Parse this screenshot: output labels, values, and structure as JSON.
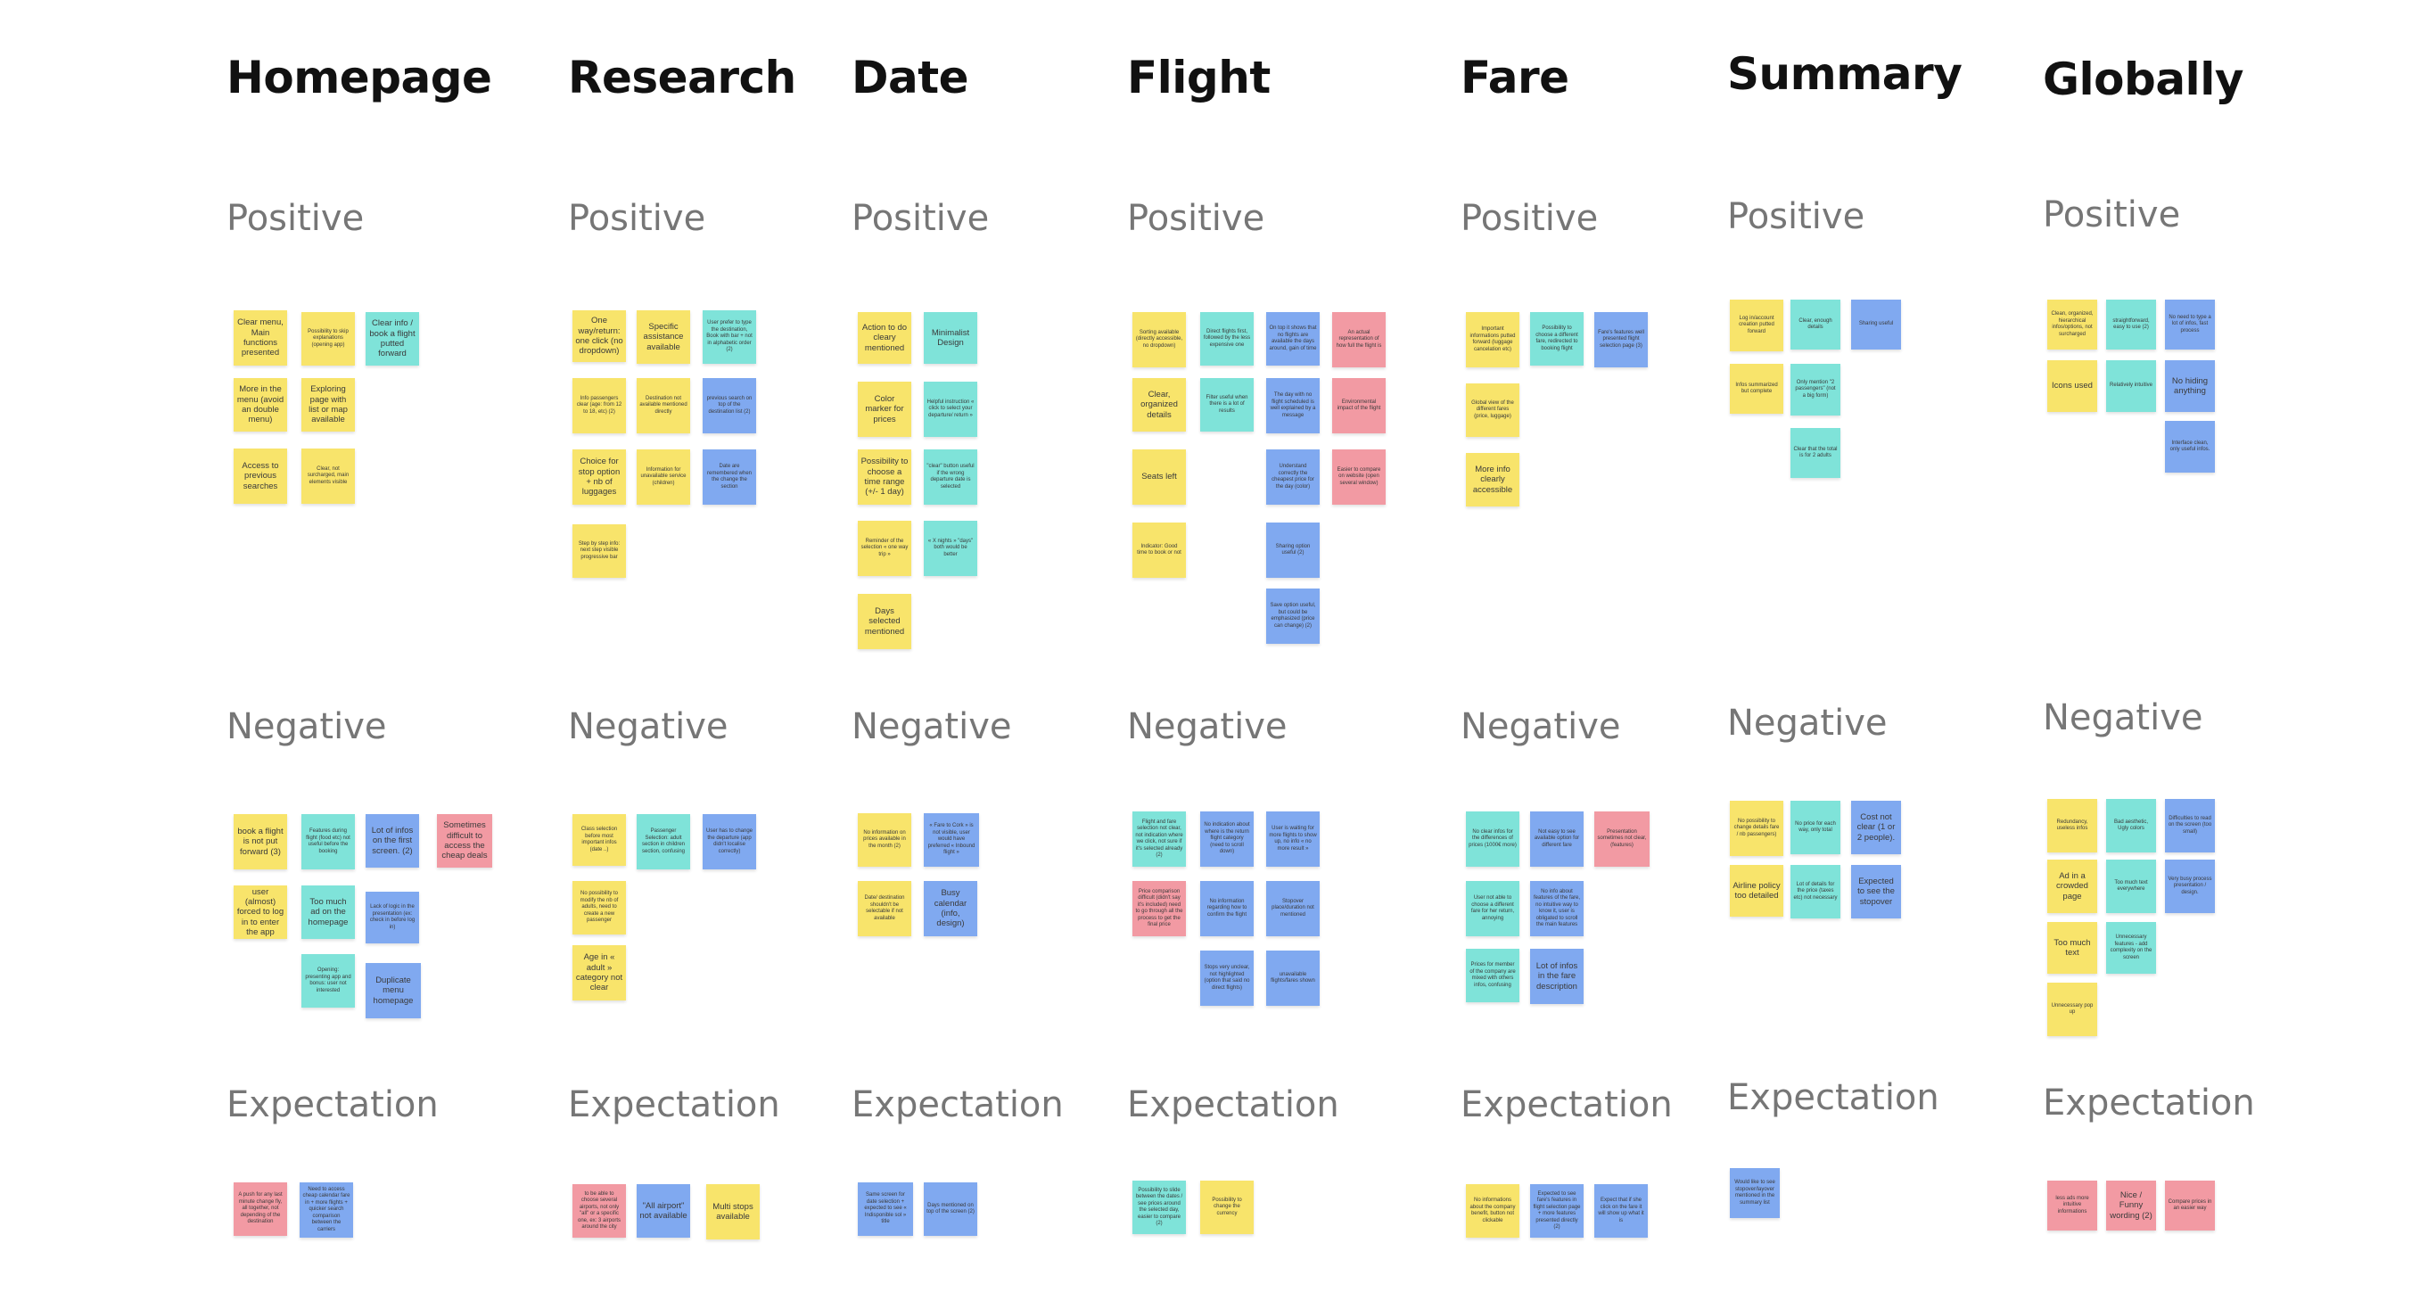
{
  "colors": {
    "yellow": "#F8E46B",
    "teal": "#7FE3D9",
    "blue": "#80A9F0",
    "pink": "#F29AA3"
  },
  "sections": [
    "Positive",
    "Negative",
    "Expectation"
  ],
  "columns": [
    {
      "title": "Homepage",
      "positive": [
        {
          "text": "Clear menu, Main functions presented",
          "color": "yellow",
          "big": true
        },
        {
          "text": "Possibility to skip explanations (opening app)",
          "color": "yellow"
        },
        {
          "text": "Clear info / book a flight putted forward",
          "color": "teal",
          "big": true
        },
        {
          "text": "More in the menu (avoid an double menu)",
          "color": "yellow",
          "big": true
        },
        {
          "text": "Exploring page with list or map available",
          "color": "yellow",
          "big": true
        },
        {
          "text": "Access to previous searches",
          "color": "yellow",
          "big": true
        },
        {
          "text": "Clear, not surcharged, main elements visible",
          "color": "yellow"
        }
      ],
      "negative": [
        {
          "text": "book a flight is not put forward (3)",
          "color": "yellow",
          "big": true
        },
        {
          "text": "Features during flight (food etc) not useful before the booking",
          "color": "teal"
        },
        {
          "text": "Lot of infos on the first screen. (2)",
          "color": "blue",
          "big": true
        },
        {
          "text": "Sometimes difficult to access the cheap deals",
          "color": "pink",
          "big": true
        },
        {
          "text": "user (almost) forced to log in to enter the app",
          "color": "yellow",
          "big": true
        },
        {
          "text": "Too much ad on the homepage",
          "color": "teal",
          "big": true
        },
        {
          "text": "Lack of logic in the presentation (ex: check in before log in)",
          "color": "blue"
        },
        {
          "text": "Opening: presenting app and bonus: user not interested",
          "color": "teal"
        },
        {
          "text": "Duplicate menu homepage",
          "color": "blue",
          "big": true
        }
      ],
      "expectation": [
        {
          "text": "A push for any last minute change fly, all together, not depending of the destination",
          "color": "pink"
        },
        {
          "text": "Need to access cheap calendar fare in + more flights + quicker search comparison between the carriers",
          "color": "blue"
        }
      ]
    },
    {
      "title": "Research",
      "positive": [
        {
          "text": "One way/return: one click (no dropdown)",
          "color": "yellow",
          "big": true
        },
        {
          "text": "Specific assistance available",
          "color": "yellow",
          "big": true
        },
        {
          "text": "User prefer to type the destination, Book with bar + not in alphabetic order (2)",
          "color": "teal"
        },
        {
          "text": "Info passengers clear (age: from 12 to 18, etc) (2)",
          "color": "yellow"
        },
        {
          "text": "Destination not available mentioned directly",
          "color": "yellow"
        },
        {
          "text": "previous search on top of the destination list (2)",
          "color": "blue"
        },
        {
          "text": "Choice for stop option + nb of luggages",
          "color": "yellow",
          "big": true
        },
        {
          "text": "Information for unavailable service (children)",
          "color": "yellow"
        },
        {
          "text": "Date are remembered when the change the section",
          "color": "blue"
        },
        {
          "text": "Step by step info: next step visible progressive bar",
          "color": "yellow"
        }
      ],
      "negative": [
        {
          "text": "Class selection before most important infos (date ..)",
          "color": "yellow"
        },
        {
          "text": "Passenger Selection: adult section in children section, confusing",
          "color": "teal"
        },
        {
          "text": "User has to change the departure (app didn't localise correctly)",
          "color": "blue"
        },
        {
          "text": "No possibility to modify the nb of adults, need to create a new passenger",
          "color": "yellow"
        },
        {
          "text": "Age in « adult » category not clear",
          "color": "yellow",
          "big": true
        }
      ],
      "expectation": [
        {
          "text": "to be able to choose several airports, not only \"all\" or a specific one, ex: 3 airports around the city",
          "color": "pink"
        },
        {
          "text": "\"All airport\" not available",
          "color": "blue",
          "big": true
        },
        {
          "text": "Multi stops available",
          "color": "yellow",
          "big": true
        }
      ]
    },
    {
      "title": "Date",
      "positive": [
        {
          "text": "Action to do cleary mentioned",
          "color": "yellow",
          "big": true
        },
        {
          "text": "Minimalist Design",
          "color": "teal",
          "big": true
        },
        {
          "text": "Color marker for prices",
          "color": "yellow",
          "big": true
        },
        {
          "text": "Helpful instruction « click to select your departure/ return »",
          "color": "teal"
        },
        {
          "text": "Possibility to choose a time range (+/- 1 day)",
          "color": "yellow",
          "big": true
        },
        {
          "text": "\"clear\" button useful if the wrong departure date is selected",
          "color": "teal"
        },
        {
          "text": "Reminder of the selection « one way trip »",
          "color": "yellow"
        },
        {
          "text": "« X nights » \"days\" both would be better",
          "color": "teal"
        },
        {
          "text": "Days selected mentioned",
          "color": "yellow",
          "big": true
        }
      ],
      "negative": [
        {
          "text": "No information on prices available in the month (2)",
          "color": "yellow"
        },
        {
          "text": "« Fare to Cork » is not visible, user would have preferred « Inbound flight »",
          "color": "blue"
        },
        {
          "text": "Date/ destination shouldn't be selectable if not available",
          "color": "yellow"
        },
        {
          "text": "Busy calendar (info, design)",
          "color": "blue",
          "big": true
        }
      ],
      "expectation": [
        {
          "text": "Same screen for date selection + expected to see « Indisponible sol » title",
          "color": "blue"
        },
        {
          "text": "Days mentioned on top of the screen (2)",
          "color": "blue"
        }
      ]
    },
    {
      "title": "Flight",
      "positive": [
        {
          "text": "Sorting available (directly accessible, no dropdown)",
          "color": "yellow"
        },
        {
          "text": "Direct flights first, followed by the less expensive one",
          "color": "teal"
        },
        {
          "text": "On top it shows that no flights are available the days around, gain of time",
          "color": "blue"
        },
        {
          "text": "An actual representation of how full the flight is",
          "color": "pink"
        },
        {
          "text": "Clear, organized details",
          "color": "yellow",
          "big": true
        },
        {
          "text": "Filter useful when there is a lot of results",
          "color": "teal"
        },
        {
          "text": "The day with no flight scheduled is well explained by a message",
          "color": "blue"
        },
        {
          "text": "Environmental impact of the flight",
          "color": "pink"
        },
        {
          "text": "Seats left",
          "color": "yellow",
          "big": true
        },
        {
          "text": "Understand correctly the cheapest price for the day (color)",
          "color": "blue"
        },
        {
          "text": "Easier to compare on website (open several window)",
          "color": "pink"
        },
        {
          "text": "Indicator: Good time to book or not",
          "color": "yellow"
        },
        {
          "text": "Sharing option useful (2)",
          "color": "blue"
        },
        {
          "text": "Save option useful, but could be emphasized (price can change) (2)",
          "color": "blue"
        }
      ],
      "negative": [
        {
          "text": "Flight and fare selection not clear, not indication where we click, not sure if it's selected already (2)",
          "color": "teal"
        },
        {
          "text": "No indication about where is the return flight category (need to scroll down)",
          "color": "blue"
        },
        {
          "text": "User is waiting for more flights to show up, no info « no more result »",
          "color": "blue"
        },
        {
          "text": "Price comparison difficult (didn't say it's included) need to go through all the process to get the final price",
          "color": "pink"
        },
        {
          "text": "No information regarding how to confirm the flight",
          "color": "blue"
        },
        {
          "text": "Stopover place/duration not mentioned",
          "color": "blue"
        },
        {
          "text": "Stops very unclear, not highlighted (option that said no direct flights)",
          "color": "blue"
        },
        {
          "text": "unavailable flights/fares shown",
          "color": "blue"
        }
      ],
      "expectation": [
        {
          "text": "Possibility to slide between the dates / see prices around the selected day, easier to compare (2)",
          "color": "teal"
        },
        {
          "text": "Possibility to change the currency",
          "color": "yellow"
        }
      ]
    },
    {
      "title": "Fare",
      "positive": [
        {
          "text": "Important informations putted forward (luggage cancelation etc)",
          "color": "yellow"
        },
        {
          "text": "Possibility to choose a different fare, redirected to booking flight",
          "color": "teal"
        },
        {
          "text": "Fare's features well presented flight selection page (3)",
          "color": "blue"
        },
        {
          "text": "Global view of the different fares (price, luggage)",
          "color": "yellow"
        },
        {
          "text": "More info clearly accessible",
          "color": "yellow",
          "big": true
        }
      ],
      "negative": [
        {
          "text": "No clear infos for the differences of prices (1000€ more)",
          "color": "teal"
        },
        {
          "text": "Not easy to see available option for different fare",
          "color": "blue"
        },
        {
          "text": "Presentation sometimes not clear, (features)",
          "color": "pink"
        },
        {
          "text": "User not able to choose a different fare for her return, annoying",
          "color": "teal"
        },
        {
          "text": "No info about features of the fare, no intuitive way to know it, user is obligated to scroll the main features",
          "color": "blue"
        },
        {
          "text": "Prices for member of the company are mixed with others infos, confusing",
          "color": "teal"
        },
        {
          "text": "Lot of infos in the fare description",
          "color": "blue",
          "big": true
        }
      ],
      "expectation": [
        {
          "text": "No informations about the company benefit, button not clickable",
          "color": "yellow"
        },
        {
          "text": "Expected to see fare's features in flight selection page + more features presented directly (2)",
          "color": "blue"
        },
        {
          "text": "Expect that if she click on the fare it will show up what it is",
          "color": "blue"
        }
      ]
    },
    {
      "title": "Summary",
      "positive": [
        {
          "text": "Log in/account creation putted forward",
          "color": "yellow"
        },
        {
          "text": "Clear, enough details",
          "color": "teal"
        },
        {
          "text": "Sharing useful",
          "color": "blue"
        },
        {
          "text": "Infos summarized but complete",
          "color": "yellow"
        },
        {
          "text": "Only mention \"2 passengers\" (not a big form)",
          "color": "teal"
        },
        {
          "text": "Clear that the total is for 2 adults",
          "color": "teal"
        }
      ],
      "negative": [
        {
          "text": "No possibility to change details fare / nb passengers)",
          "color": "yellow"
        },
        {
          "text": "No price for each way, only total",
          "color": "teal"
        },
        {
          "text": "Cost not clear (1 or 2 people).",
          "color": "blue",
          "big": true
        },
        {
          "text": "Airline policy too detailed",
          "color": "yellow",
          "big": true
        },
        {
          "text": "Lot of details for the price (taxes etc) not necessary",
          "color": "teal"
        },
        {
          "text": "Expected to see the stopover",
          "color": "blue",
          "big": true
        }
      ],
      "expectation": [
        {
          "text": "Would like to see stopover/layover mentioned in the summary list",
          "color": "blue"
        }
      ]
    },
    {
      "title": "Globally",
      "positive": [
        {
          "text": "Clean, organized, hierarchical infos/options, not surcharged",
          "color": "yellow"
        },
        {
          "text": "straightforward, easy to use (2)",
          "color": "teal"
        },
        {
          "text": "No need to type a lot of infos, fast process",
          "color": "blue"
        },
        {
          "text": "Icons used",
          "color": "yellow",
          "big": true
        },
        {
          "text": "Relatively intuitive",
          "color": "teal"
        },
        {
          "text": "No hiding anything",
          "color": "blue",
          "big": true
        },
        {
          "text": "Interface clean, only useful infos.",
          "color": "blue"
        }
      ],
      "negative": [
        {
          "text": "Redundancy, useless infos",
          "color": "yellow"
        },
        {
          "text": "Bad aesthetic, Ugly colors",
          "color": "teal"
        },
        {
          "text": "Difficulties to read on the screen (too small)",
          "color": "blue"
        },
        {
          "text": "Ad in a crowded page",
          "color": "yellow",
          "big": true
        },
        {
          "text": "Too much text everywhere",
          "color": "teal"
        },
        {
          "text": "Very busy process presentation / design.",
          "color": "blue"
        },
        {
          "text": "Too much text",
          "color": "yellow",
          "big": true
        },
        {
          "text": "Unnecessary features - add complexity on the screen",
          "color": "teal"
        },
        {
          "text": "Unnecessary pop up",
          "color": "yellow"
        }
      ],
      "expectation": [
        {
          "text": "less ads more intuitive informations",
          "color": "pink"
        },
        {
          "text": "Nice / Funny wording (2)",
          "color": "pink",
          "big": true
        },
        {
          "text": "Compare prices in an easier way",
          "color": "pink"
        }
      ]
    }
  ]
}
